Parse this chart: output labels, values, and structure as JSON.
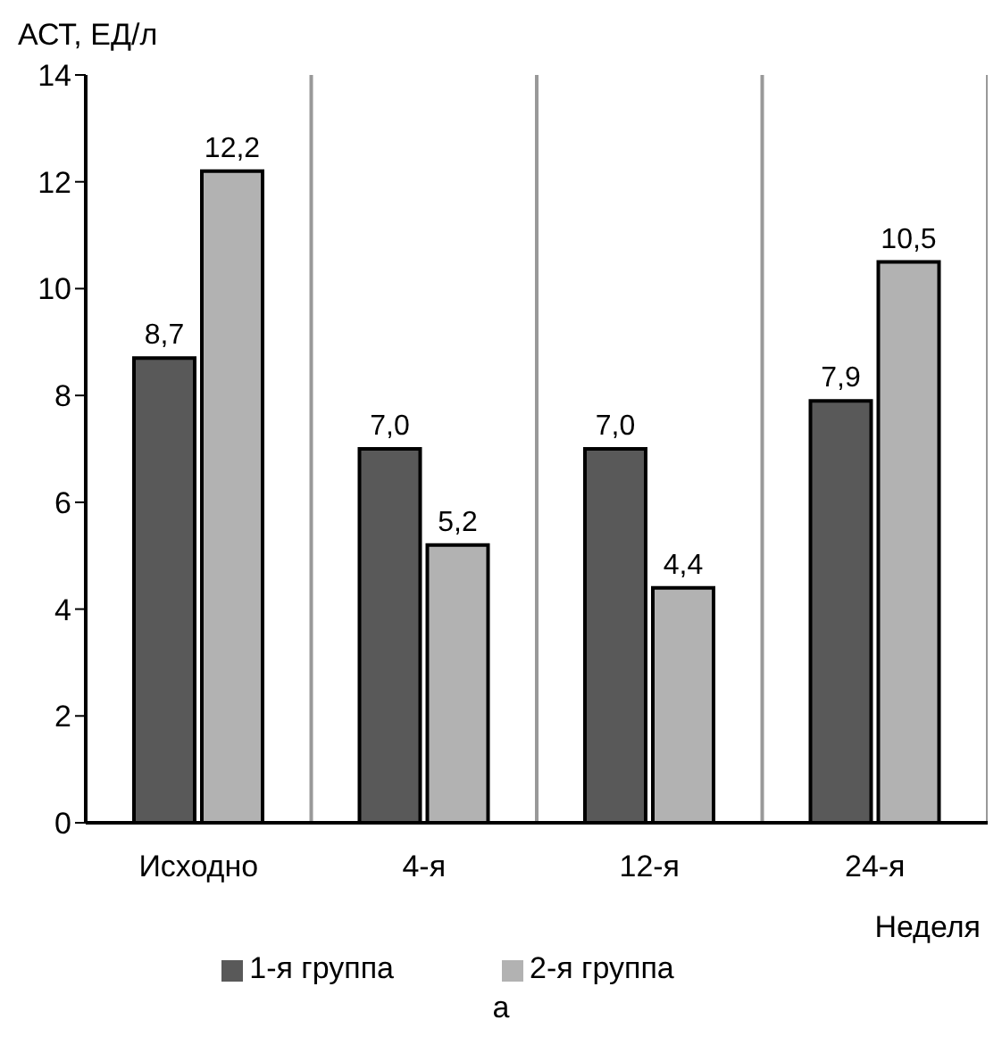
{
  "chart_data": {
    "type": "bar",
    "ylabel": "АСТ, ЕД/л",
    "xlabel": "Неделя",
    "categories": [
      "Исходно",
      "4-я",
      "12-я",
      "24-я"
    ],
    "series": [
      {
        "name": "1-я группа",
        "color": "#595959",
        "values": [
          8.7,
          7.0,
          7.0,
          7.9
        ],
        "value_labels": [
          "8,7",
          "7,0",
          "7,0",
          "7,9"
        ]
      },
      {
        "name": "2-я группа",
        "color": "#b2b2b2",
        "values": [
          12.2,
          5.2,
          4.4,
          10.5
        ],
        "value_labels": [
          "12,2",
          "5,2",
          "4,4",
          "10,5"
        ]
      }
    ],
    "ylim": [
      0,
      14
    ],
    "yticks": [
      0,
      2,
      4,
      6,
      8,
      10,
      12,
      14
    ],
    "grid": "x",
    "legend": "bottom",
    "annotations": [
      "а"
    ]
  }
}
